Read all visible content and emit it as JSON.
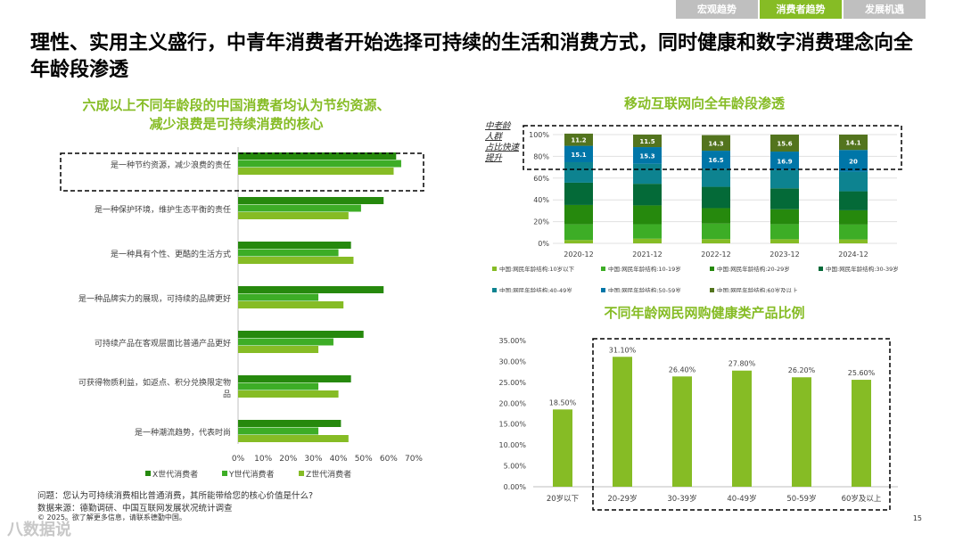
{
  "tabs": [
    "宏观趋势",
    "消费者趋势",
    "发展机遇"
  ],
  "title": "理性、实用主义盛行，中青年消费者开始选择可持续的生活和消费方式，同时健康和数字消费理念向全年龄段渗透",
  "left_chart_title": "六成以上不同年龄段的中国消费者均认为节约资源、减少浪费是可持续消费的核心",
  "top_right_title": "移动互联网向全年龄段渗透",
  "bottom_right_title": "不同年龄网民网购健康类产品比例",
  "callout_text": "中老龄人群占比快速提升",
  "footer": {
    "question": "问题：您认为可持续消费相比普通消费，其所能带给您的核心价值是什么?",
    "source": "数据来源：德勤调研、中国互联网发展状况统计调查",
    "copyright": "© 2025。欲了解更多信息，请联系德勤中国。"
  },
  "page_number": "15",
  "watermark": "八数据说",
  "colors": {
    "green_dark": "#26890d",
    "green_mid": "#3dad26",
    "green_light": "#86bc25",
    "teal": "#0d8390",
    "blue": "#0076a8",
    "olive": "#53741e"
  },
  "chart_data": [
    {
      "type": "bar",
      "orientation": "horizontal",
      "categories": [
        "是一种节约资源，减少浪费的责任",
        "是一种保护环境，维护生态平衡的责任",
        "是一种具有个性、更酷的生活方式",
        "是一种品牌实力的展现，可持续的品牌更好",
        "可持续产品在客观层面比普通产品更好",
        "可获得物质利益，如返点、积分兑换限定物品",
        "是一种潮流趋势，代表时尚"
      ],
      "series": [
        {
          "name": "X世代消费者",
          "color": "#26890d",
          "values": [
            63,
            58,
            45,
            58,
            50,
            45,
            41
          ]
        },
        {
          "name": "Y世代消费者",
          "color": "#3dad26",
          "values": [
            65,
            49,
            40,
            32,
            38,
            32,
            32
          ]
        },
        {
          "name": "Z世代消费者",
          "color": "#86bc25",
          "values": [
            62,
            44,
            46,
            42,
            32,
            40,
            44
          ]
        }
      ],
      "xlim": [
        0,
        70
      ],
      "xticks": [
        "0%",
        "10%",
        "20%",
        "30%",
        "40%",
        "50%",
        "60%",
        "70%"
      ]
    },
    {
      "type": "bar",
      "stacked": true,
      "categories": [
        "2020-12",
        "2021-12",
        "2022-12",
        "2023-12",
        "2024-12"
      ],
      "series": [
        {
          "name": "中国:网民年龄结构:10岁以下",
          "color": "#86bc25",
          "values": [
            3.1,
            4.3,
            3.9,
            3.8,
            3.6
          ]
        },
        {
          "name": "中国:网民年龄结构:10-19岁",
          "color": "#3dad26",
          "values": [
            14.4,
            13.3,
            14.3,
            13.9,
            13.7
          ]
        },
        {
          "name": "中国:网民年龄结构:20-29岁",
          "color": "#26890d",
          "values": [
            17.8,
            17.3,
            14.2,
            13.7,
            13.1
          ]
        },
        {
          "name": "中国:网民年龄结构:30-39岁",
          "color": "#046a38",
          "values": [
            20.5,
            19.9,
            19.6,
            19.2,
            17.5
          ]
        },
        {
          "name": "中国:网民年龄结构:40-49岁",
          "color": "#0d8390",
          "values": [
            18.8,
            18.4,
            16.7,
            16.9,
            18.0
          ]
        },
        {
          "name": "中国:网民年龄结构:50-59岁",
          "color": "#0076a8",
          "values": [
            15.1,
            15.3,
            16.5,
            16.9,
            20
          ]
        },
        {
          "name": "中国:网民年龄结构:60岁及以上",
          "color": "#53741e",
          "values": [
            11.2,
            11.5,
            14.3,
            15.6,
            14.1
          ]
        }
      ],
      "ylim": [
        0,
        100
      ],
      "yticks": [
        "0%",
        "20%",
        "40%",
        "60%",
        "80%",
        "100%"
      ]
    },
    {
      "type": "bar",
      "categories": [
        "20岁以下",
        "20-29岁",
        "30-39岁",
        "40-49岁",
        "50-59岁",
        "60岁及以上"
      ],
      "values": [
        18.5,
        31.1,
        26.4,
        27.8,
        26.2,
        25.6
      ],
      "labels": [
        "18.50%",
        "31.10%",
        "26.40%",
        "27.80%",
        "26.20%",
        "25.60%"
      ],
      "ylim": [
        0,
        35
      ],
      "yticks": [
        "0.00%",
        "5.00%",
        "10.00%",
        "15.00%",
        "20.00%",
        "25.00%",
        "30.00%",
        "35.00%"
      ]
    }
  ]
}
